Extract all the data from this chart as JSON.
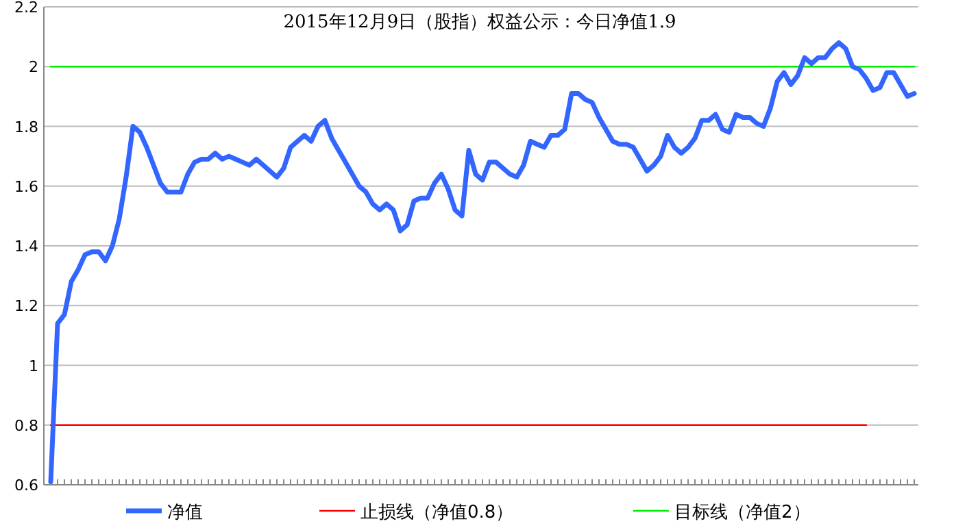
{
  "chart_data": {
    "type": "line",
    "title": "2015年12月9日（股指）权益公示：今日净值1.9",
    "categories": [
      null,
      null,
      null,
      null,
      null,
      null,
      null,
      null,
      null,
      null,
      null,
      null,
      null,
      null,
      null,
      null,
      null,
      null,
      null,
      null,
      null,
      null,
      null,
      null,
      null,
      null,
      null,
      null,
      null,
      null,
      null,
      null,
      null,
      null,
      null,
      null,
      null,
      null,
      null,
      null,
      null,
      null,
      null,
      null,
      null,
      null,
      null,
      null,
      null,
      null,
      null,
      null,
      null,
      null,
      null,
      null,
      null,
      null,
      null,
      null,
      null,
      null,
      null,
      null,
      null,
      null,
      null,
      null,
      null,
      null,
      null,
      null,
      null,
      null,
      null,
      null,
      null,
      null,
      null,
      null,
      null,
      null,
      null,
      null,
      null,
      null,
      null,
      null,
      null,
      null,
      null,
      null,
      null,
      null,
      null,
      null,
      null,
      null,
      null,
      null,
      null,
      null,
      null,
      null,
      null,
      null,
      null,
      null,
      null,
      null,
      null,
      null,
      null,
      null,
      null,
      null,
      null,
      null,
      null,
      null,
      null,
      null,
      null,
      null,
      null,
      null,
      null
    ],
    "series": [
      {
        "name": "净值",
        "color": "#3366ff",
        "values": [
          0.61,
          1.14,
          1.17,
          1.28,
          1.32,
          1.37,
          1.38,
          1.38,
          1.35,
          1.4,
          1.49,
          1.63,
          1.8,
          1.78,
          1.73,
          1.67,
          1.61,
          1.58,
          1.58,
          1.58,
          1.64,
          1.68,
          1.69,
          1.69,
          1.71,
          1.69,
          1.7,
          1.69,
          1.68,
          1.67,
          1.69,
          1.67,
          1.65,
          1.63,
          1.66,
          1.73,
          1.75,
          1.77,
          1.75,
          1.8,
          1.82,
          1.76,
          1.72,
          1.68,
          1.64,
          1.6,
          1.58,
          1.54,
          1.52,
          1.54,
          1.52,
          1.45,
          1.47,
          1.55,
          1.56,
          1.56,
          1.61,
          1.64,
          1.59,
          1.52,
          1.5,
          1.72,
          1.64,
          1.62,
          1.68,
          1.68,
          1.66,
          1.64,
          1.63,
          1.67,
          1.75,
          1.74,
          1.73,
          1.77,
          1.77,
          1.79,
          1.91,
          1.91,
          1.89,
          1.88,
          1.83,
          1.79,
          1.75,
          1.74,
          1.74,
          1.73,
          1.69,
          1.65,
          1.67,
          1.7,
          1.77,
          1.73,
          1.71,
          1.73,
          1.76,
          1.82,
          1.82,
          1.84,
          1.79,
          1.78,
          1.84,
          1.83,
          1.83,
          1.81,
          1.8,
          1.86,
          1.95,
          1.98,
          1.94,
          1.97,
          2.03,
          2.01,
          2.03,
          2.03,
          2.06,
          2.08,
          2.06,
          2.0,
          1.99,
          1.96,
          1.92,
          1.93,
          1.98,
          1.98,
          1.94,
          1.9,
          1.91
        ]
      },
      {
        "name": "止损线（净值0.8）",
        "color": "#ff0000",
        "values": [
          0.8,
          0.8,
          0.8,
          0.8,
          0.8,
          0.8,
          0.8,
          0.8,
          0.8,
          0.8,
          0.8,
          0.8,
          0.8,
          0.8,
          0.8,
          0.8,
          0.8,
          0.8,
          0.8,
          0.8,
          0.8,
          0.8,
          0.8,
          0.8,
          0.8,
          0.8,
          0.8,
          0.8,
          0.8,
          0.8,
          0.8,
          0.8,
          0.8,
          0.8,
          0.8,
          0.8,
          0.8,
          0.8,
          0.8,
          0.8,
          0.8,
          0.8,
          0.8,
          0.8,
          0.8,
          0.8,
          0.8,
          0.8,
          0.8,
          0.8,
          0.8,
          0.8,
          0.8,
          0.8,
          0.8,
          0.8,
          0.8,
          0.8,
          0.8,
          0.8,
          0.8,
          0.8,
          0.8,
          0.8,
          0.8,
          0.8,
          0.8,
          0.8,
          0.8,
          0.8,
          0.8,
          0.8,
          0.8,
          0.8,
          0.8,
          0.8,
          0.8,
          0.8,
          0.8,
          0.8,
          0.8,
          0.8,
          0.8,
          0.8,
          0.8,
          0.8,
          0.8,
          0.8,
          0.8,
          0.8,
          0.8,
          0.8,
          0.8,
          0.8,
          0.8,
          0.8,
          0.8,
          0.8,
          0.8,
          0.8,
          0.8,
          0.8,
          0.8,
          0.8,
          0.8,
          0.8,
          0.8,
          0.8,
          0.8,
          0.8,
          0.8,
          0.8,
          0.8,
          0.8,
          0.8,
          0.8,
          0.8,
          0.8,
          0.8,
          0.8,
          null,
          null,
          null,
          null,
          null,
          null,
          null
        ]
      },
      {
        "name": "目标线（净值2）",
        "color": "#00ee00",
        "values": [
          2,
          2,
          2,
          2,
          2,
          2,
          2,
          2,
          2,
          2,
          2,
          2,
          2,
          2,
          2,
          2,
          2,
          2,
          2,
          2,
          2,
          2,
          2,
          2,
          2,
          2,
          2,
          2,
          2,
          2,
          2,
          2,
          2,
          2,
          2,
          2,
          2,
          2,
          2,
          2,
          2,
          2,
          2,
          2,
          2,
          2,
          2,
          2,
          2,
          2,
          2,
          2,
          2,
          2,
          2,
          2,
          2,
          2,
          2,
          2,
          2,
          2,
          2,
          2,
          2,
          2,
          2,
          2,
          2,
          2,
          2,
          2,
          2,
          2,
          2,
          2,
          2,
          2,
          2,
          2,
          2,
          2,
          2,
          2,
          2,
          2,
          2,
          2,
          2,
          2,
          2,
          2,
          2,
          2,
          2,
          2,
          2,
          2,
          2,
          2,
          2,
          2,
          2,
          2,
          2,
          2,
          2,
          2,
          2,
          2,
          2,
          2,
          2,
          2,
          2,
          2,
          2,
          2,
          2,
          2,
          2,
          2,
          2,
          2,
          2,
          2,
          2
        ]
      }
    ],
    "ylim": [
      0.6,
      2.2
    ],
    "yticks": [
      0.6,
      0.8,
      1,
      1.2,
      1.4,
      1.6,
      1.8,
      2,
      2.2
    ],
    "grid": "y",
    "legend": "bottom",
    "tick_labels": "y"
  }
}
